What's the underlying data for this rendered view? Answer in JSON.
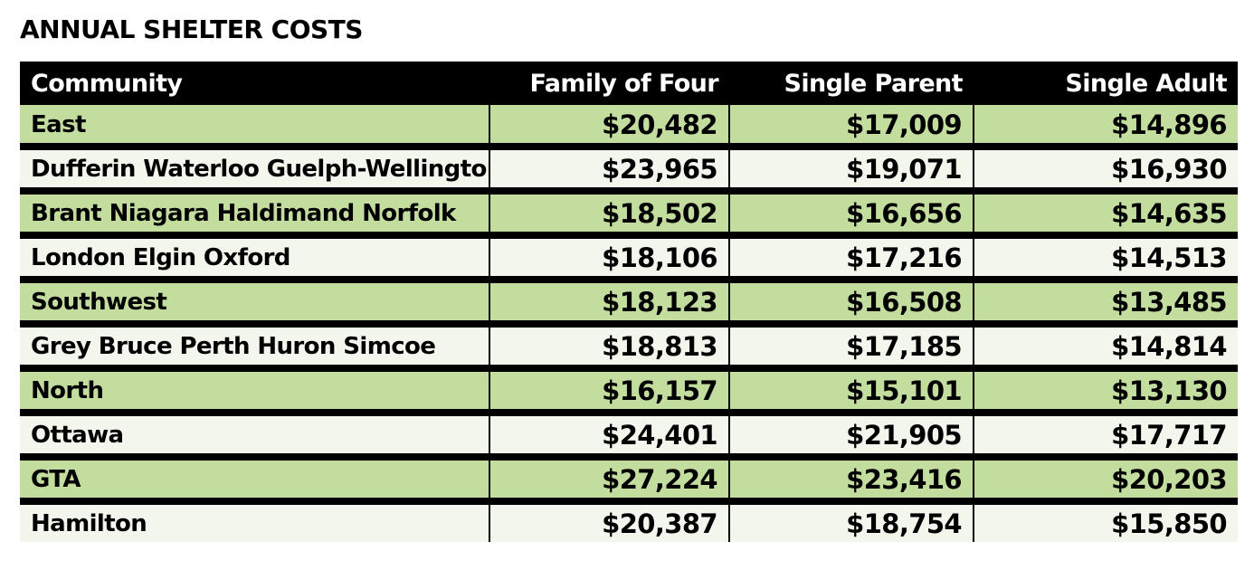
{
  "title": "ANNUAL SHELTER COSTS",
  "chart_data": {
    "type": "table",
    "title": "ANNUAL SHELTER COSTS",
    "columns": [
      "Community",
      "Family of Four",
      "Single Parent",
      "Single Adult"
    ],
    "rows": [
      [
        "East",
        "$20,482",
        "$17,009",
        "$14,896"
      ],
      [
        "Dufferin Waterloo Guelph-Wellington",
        "$23,965",
        "$19,071",
        "$16,930"
      ],
      [
        "Brant Niagara Haldimand Norfolk",
        "$18,502",
        "$16,656",
        "$14,635"
      ],
      [
        "London Elgin Oxford",
        "$18,106",
        "$17,216",
        "$14,513"
      ],
      [
        "Southwest",
        "$18,123",
        "$16,508",
        "$13,485"
      ],
      [
        "Grey Bruce Perth Huron Simcoe",
        "$18,813",
        "$17,185",
        "$14,814"
      ],
      [
        "North",
        "$16,157",
        "$15,101",
        "$13,130"
      ],
      [
        "Ottawa",
        "$24,401",
        "$21,905",
        "$17,717"
      ],
      [
        "GTA",
        "$27,224",
        "$23,416",
        "$20,203"
      ],
      [
        "Hamilton",
        "$20,387",
        "$18,754",
        "$15,850"
      ]
    ]
  },
  "colors": {
    "header_background": "#000000",
    "header_text": "#ffffff",
    "row_shaded": "#c3dd9f",
    "row_light": "#f3f6ec"
  }
}
